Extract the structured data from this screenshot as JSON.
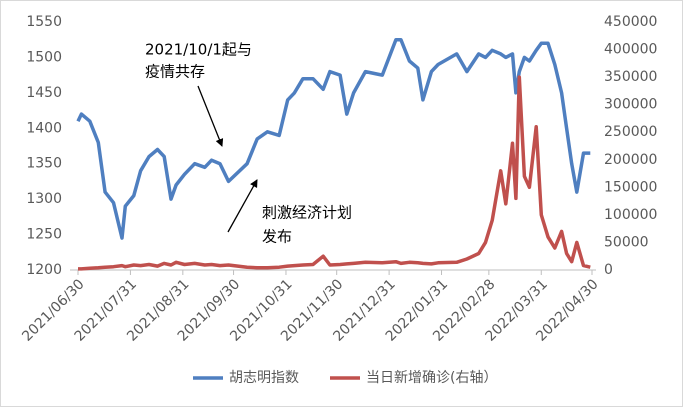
{
  "chart_data": {
    "type": "line",
    "x": [
      "2021/06/30",
      "2021/07/02",
      "2021/07/07",
      "2021/07/12",
      "2021/07/16",
      "2021/07/21",
      "2021/07/26",
      "2021/07/28",
      "2021/08/02",
      "2021/08/06",
      "2021/08/11",
      "2021/08/16",
      "2021/08/20",
      "2021/08/24",
      "2021/08/27",
      "2021/09/01",
      "2021/09/07",
      "2021/09/13",
      "2021/09/17",
      "2021/09/22",
      "2021/09/27",
      "2021/10/08",
      "2021/10/14",
      "2021/10/20",
      "2021/10/27",
      "2021/11/01",
      "2021/11/05",
      "2021/11/10",
      "2021/11/16",
      "2021/11/22",
      "2021/11/26",
      "2021/12/02",
      "2021/12/06",
      "2021/12/10",
      "2021/12/17",
      "2021/12/27",
      "2022/01/04",
      "2022/01/07",
      "2022/01/12",
      "2022/01/17",
      "2022/01/20",
      "2022/01/25",
      "2022/01/29",
      "2022/02/09",
      "2022/02/15",
      "2022/02/22",
      "2022/02/26",
      "2022/03/02",
      "2022/03/07",
      "2022/03/10",
      "2022/03/14",
      "2022/03/16",
      "2022/03/18",
      "2022/03/21",
      "2022/03/24",
      "2022/03/28",
      "2022/03/31",
      "2022/04/04",
      "2022/04/08",
      "2022/04/12",
      "2022/04/15",
      "2022/04/18",
      "2022/04/21",
      "2022/04/25",
      "2022/04/29"
    ],
    "series": [
      {
        "name": "胡志明指数",
        "color": "#4f7fc0",
        "axis": "y",
        "values": [
          1410,
          1420,
          1410,
          1380,
          1310,
          1295,
          1245,
          1290,
          1305,
          1340,
          1360,
          1370,
          1360,
          1300,
          1320,
          1335,
          1350,
          1345,
          1355,
          1350,
          1325,
          1350,
          1385,
          1395,
          1390,
          1440,
          1450,
          1470,
          1470,
          1455,
          1480,
          1475,
          1420,
          1450,
          1480,
          1475,
          1525,
          1525,
          1495,
          1485,
          1440,
          1480,
          1490,
          1505,
          1480,
          1505,
          1500,
          1510,
          1505,
          1500,
          1505,
          1450,
          1480,
          1500,
          1495,
          1510,
          1520,
          1520,
          1490,
          1450,
          1400,
          1350,
          1310,
          1365,
          1365
        ]
      },
      {
        "name": "当日新增确诊(右轴）",
        "color": "#c0504d",
        "axis": "y2",
        "values": [
          2000,
          2000,
          3000,
          4000,
          5000,
          6000,
          8000,
          6000,
          9000,
          8000,
          10000,
          7000,
          12000,
          9000,
          14000,
          10000,
          12000,
          9000,
          10000,
          8000,
          9000,
          5000,
          4000,
          4000,
          5000,
          7000,
          8000,
          9000,
          10000,
          25000,
          9000,
          10000,
          11000,
          12000,
          14000,
          13000,
          15000,
          12000,
          14000,
          13000,
          12000,
          11000,
          13000,
          14000,
          20000,
          30000,
          50000,
          90000,
          180000,
          120000,
          230000,
          130000,
          350000,
          170000,
          150000,
          260000,
          100000,
          60000,
          40000,
          70000,
          30000,
          15000,
          50000,
          8000,
          5000
        ]
      }
    ],
    "xlim": [
      "2021/06/30",
      "2022/04/30"
    ],
    "xticks": [
      "2021/06/30",
      "2021/07/31",
      "2021/08/31",
      "2021/09/30",
      "2021/10/31",
      "2021/11/30",
      "2021/12/31",
      "2022/01/31",
      "2022/02/28",
      "2022/03/31",
      "2022/04/30"
    ],
    "ylim": [
      1200,
      1550
    ],
    "yticks": [
      1200,
      1250,
      1300,
      1350,
      1400,
      1450,
      1500,
      1550
    ],
    "y2lim": [
      0,
      450000
    ],
    "y2ticks": [
      0,
      50000,
      100000,
      150000,
      200000,
      250000,
      300000,
      350000,
      400000,
      450000
    ],
    "grid": false,
    "legend": "bottom",
    "annotations": [
      {
        "lines": [
          "2021/10/1起与",
          "疫情共存"
        ]
      },
      {
        "lines": [
          "刺激经济计划",
          "发布"
        ]
      }
    ]
  }
}
